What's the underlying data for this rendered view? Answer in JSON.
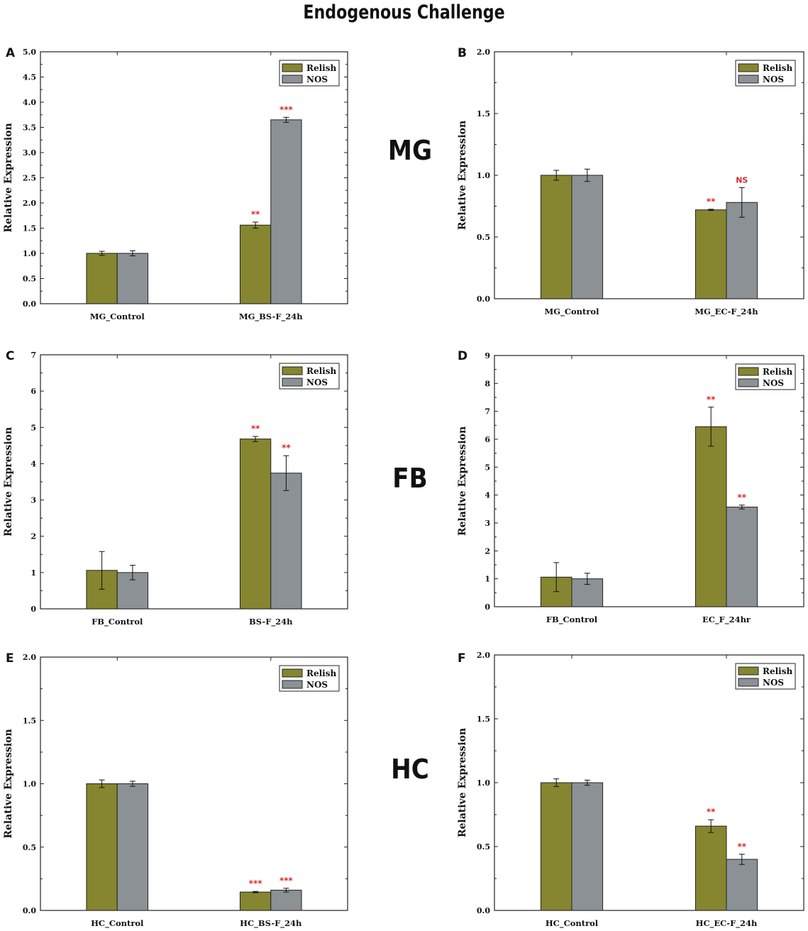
{
  "title": "Endogenous Challenge",
  "row_labels": [
    "MG",
    "FB",
    "HC"
  ],
  "colors": {
    "relish": "#85862F",
    "nos": "#8C9196",
    "significance": "#D42A2A",
    "axis": "#222222"
  },
  "chart_data": [
    {
      "panel": "A",
      "type": "bar",
      "categories": [
        "MG_Control",
        "MG_BS-F_24h"
      ],
      "series": [
        {
          "name": "Relish",
          "values": [
            1.0,
            1.56
          ],
          "errors": [
            0.04,
            0.06
          ]
        },
        {
          "name": "NOS",
          "values": [
            1.0,
            3.65
          ],
          "errors": [
            0.05,
            0.05
          ]
        }
      ],
      "significance": [
        [
          "",
          "**"
        ],
        [
          "",
          "***"
        ]
      ],
      "ylabel": "Relative Expression",
      "xlabel": "",
      "ylim": [
        0,
        5.0
      ],
      "yticks": [
        "0.0",
        "0.5",
        "1.0",
        "1.5",
        "2.0",
        "2.5",
        "3.0",
        "3.5",
        "4.0",
        "4.5",
        "5.0"
      ],
      "legend": "top-right"
    },
    {
      "panel": "B",
      "type": "bar",
      "categories": [
        "MG_Control",
        "MG_EC-F_24h"
      ],
      "series": [
        {
          "name": "Relish",
          "values": [
            1.0,
            0.72
          ],
          "errors": [
            0.04,
            0.005
          ]
        },
        {
          "name": "NOS",
          "values": [
            1.0,
            0.78
          ],
          "errors": [
            0.05,
            0.12
          ]
        }
      ],
      "significance": [
        [
          "",
          "**"
        ],
        [
          "",
          "NS"
        ]
      ],
      "ylabel": "Relative Expression",
      "xlabel": "",
      "ylim": [
        0,
        2.0
      ],
      "yticks": [
        "0.0",
        "0.5",
        "1.0",
        "1.5",
        "2.0"
      ],
      "legend": "top-right"
    },
    {
      "panel": "C",
      "type": "bar",
      "categories": [
        "FB_Control",
        "BS-F_24h"
      ],
      "series": [
        {
          "name": "Relish",
          "values": [
            1.06,
            4.68
          ],
          "errors": [
            0.52,
            0.07
          ]
        },
        {
          "name": "NOS",
          "values": [
            1.0,
            3.74
          ],
          "errors": [
            0.2,
            0.48
          ]
        }
      ],
      "significance": [
        [
          "",
          "**"
        ],
        [
          "",
          "**"
        ]
      ],
      "ylabel": "Relative Expression",
      "xlabel": "",
      "ylim": [
        0,
        7
      ],
      "yticks": [
        "0",
        "1",
        "2",
        "3",
        "4",
        "5",
        "6",
        "7"
      ],
      "legend": "top-right"
    },
    {
      "panel": "D",
      "type": "bar",
      "categories": [
        "FB_Control",
        "EC_F_24hr"
      ],
      "series": [
        {
          "name": "Relish",
          "values": [
            1.06,
            6.45
          ],
          "errors": [
            0.52,
            0.7
          ]
        },
        {
          "name": "NOS",
          "values": [
            1.0,
            3.57
          ],
          "errors": [
            0.2,
            0.07
          ]
        }
      ],
      "significance": [
        [
          "",
          "**"
        ],
        [
          "",
          "**"
        ]
      ],
      "ylabel": "Relative Expression",
      "xlabel": "",
      "ylim": [
        0,
        9
      ],
      "yticks": [
        "0",
        "1",
        "2",
        "3",
        "4",
        "5",
        "6",
        "7",
        "8",
        "9"
      ],
      "legend": "top-right"
    },
    {
      "panel": "E",
      "type": "bar",
      "categories": [
        "HC_Control",
        "HC_BS-F_24h"
      ],
      "series": [
        {
          "name": "Relish",
          "values": [
            1.0,
            0.145
          ],
          "errors": [
            0.03,
            0.005
          ]
        },
        {
          "name": "NOS",
          "values": [
            1.0,
            0.16
          ],
          "errors": [
            0.02,
            0.015
          ]
        }
      ],
      "significance": [
        [
          "",
          "***"
        ],
        [
          "",
          "***"
        ]
      ],
      "ylabel": "Relative Expression",
      "xlabel": "",
      "ylim": [
        0,
        2.0
      ],
      "yticks": [
        "0.0",
        "0.5",
        "1.0",
        "1.5",
        "2.0"
      ],
      "legend": "top-right"
    },
    {
      "panel": "F",
      "type": "bar",
      "categories": [
        "HC_Control",
        "HC_EC-F_24h"
      ],
      "series": [
        {
          "name": "Relish",
          "values": [
            1.0,
            0.66
          ],
          "errors": [
            0.03,
            0.05
          ]
        },
        {
          "name": "NOS",
          "values": [
            1.0,
            0.4
          ],
          "errors": [
            0.02,
            0.04
          ]
        }
      ],
      "significance": [
        [
          "",
          "**"
        ],
        [
          "",
          "**"
        ]
      ],
      "ylabel": "Relative Expression",
      "xlabel": "",
      "ylim": [
        0,
        2.0
      ],
      "yticks": [
        "0.0",
        "0.5",
        "1.0",
        "1.5",
        "2.0"
      ],
      "legend": "top-right"
    }
  ]
}
